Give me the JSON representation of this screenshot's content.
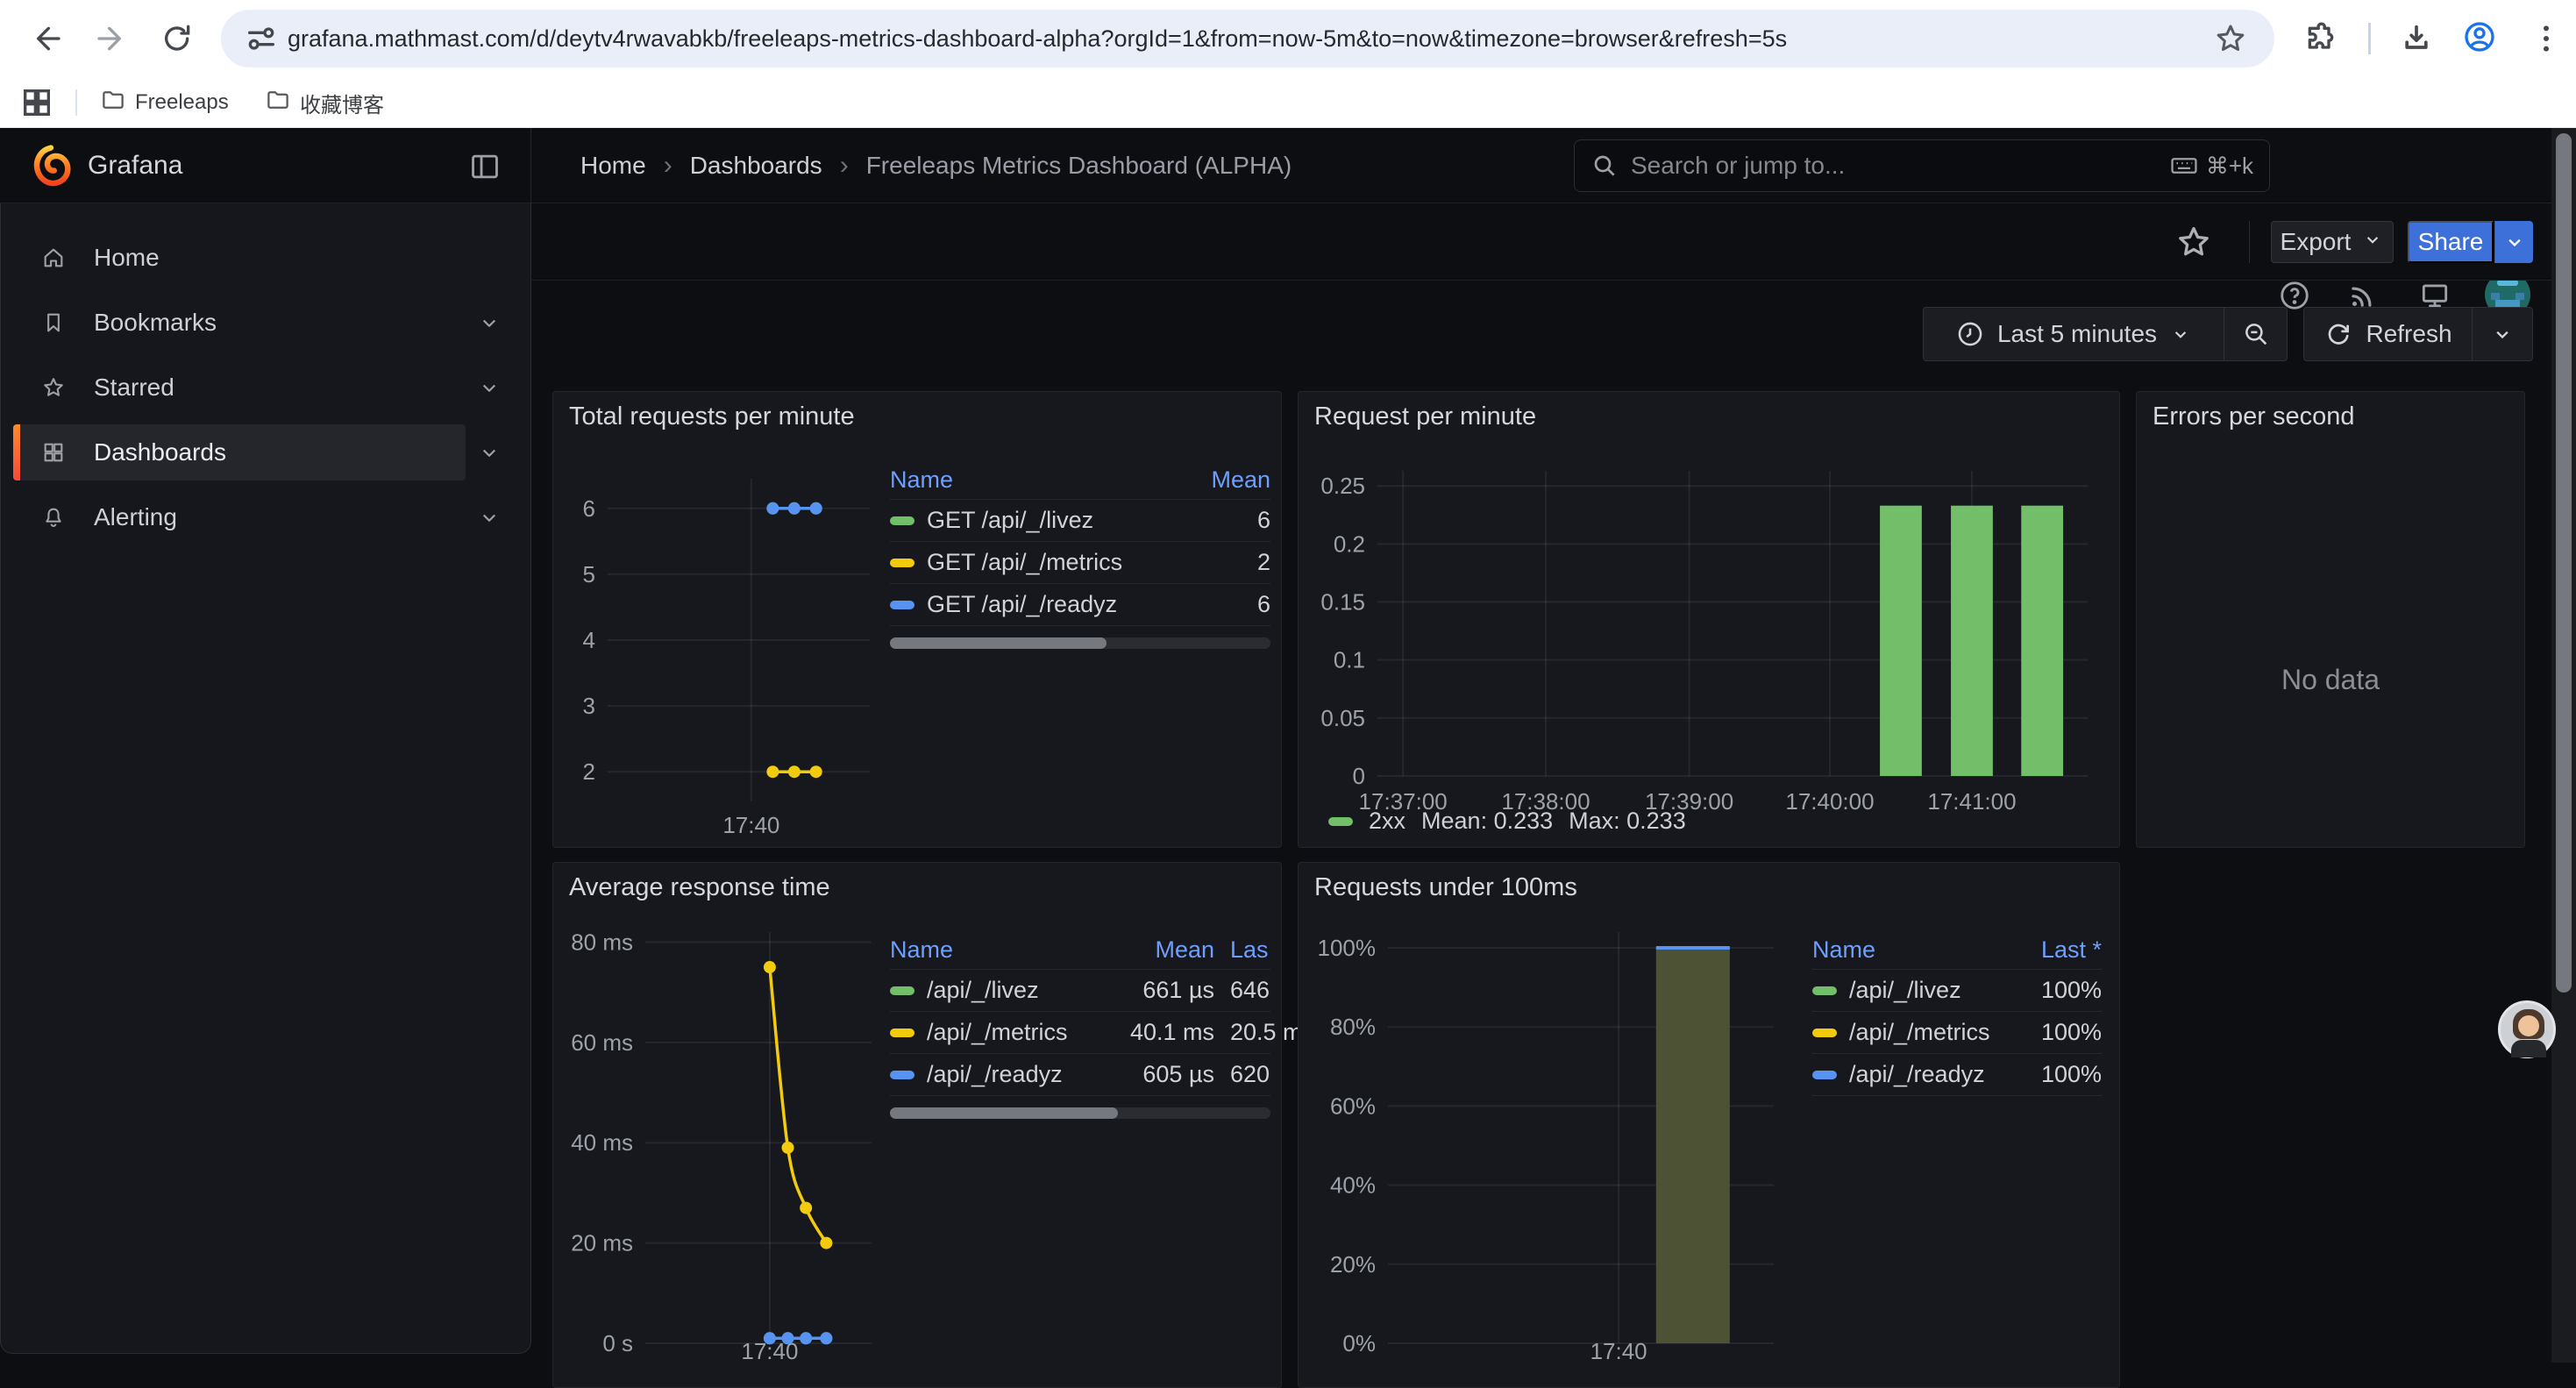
{
  "browser": {
    "url": "grafana.mathmast.com/d/deytv4rwavabkb/freeleaps-metrics-dashboard-alpha?orgId=1&from=now-5m&to=now&timezone=browser&refresh=5s",
    "bookmarks": [
      {
        "label": "Freeleaps"
      },
      {
        "label": "收藏博客"
      }
    ]
  },
  "topnav": {
    "brand": "Grafana",
    "breadcrumbs": [
      "Home",
      "Dashboards",
      "Freeleaps Metrics Dashboard (ALPHA)"
    ],
    "search_placeholder": "Search or jump to...",
    "search_shortcut": "⌘+k"
  },
  "sidebar": {
    "items": [
      {
        "label": "Home",
        "icon": "home-icon",
        "expandable": false,
        "active": false
      },
      {
        "label": "Bookmarks",
        "icon": "bookmark-icon",
        "expandable": true,
        "active": false
      },
      {
        "label": "Starred",
        "icon": "star-icon",
        "expandable": true,
        "active": false
      },
      {
        "label": "Dashboards",
        "icon": "dashboards-icon",
        "expandable": true,
        "active": true
      },
      {
        "label": "Alerting",
        "icon": "bell-icon",
        "expandable": true,
        "active": false
      }
    ]
  },
  "actions": {
    "export_label": "Export",
    "share_label": "Share"
  },
  "timebar": {
    "range_label": "Last 5 minutes",
    "refresh_label": "Refresh"
  },
  "panels": [
    {
      "title": "Total requests per minute"
    },
    {
      "title": "Request per minute"
    },
    {
      "title": "Errors per second",
      "no_data": "No data"
    },
    {
      "title": "Average response time"
    },
    {
      "title": "Requests under 100ms"
    }
  ],
  "legends": {
    "p1": {
      "headers": [
        "Name",
        "Mean"
      ],
      "rows": [
        {
          "color": "#73BF69",
          "name": "GET /api/_/livez",
          "cells": [
            "6"
          ]
        },
        {
          "color": "#F2CC0C",
          "name": "GET /api/_/metrics",
          "cells": [
            "2"
          ]
        },
        {
          "color": "#5794F2",
          "name": "GET /api/_/readyz",
          "cells": [
            "6"
          ]
        }
      ],
      "scrollbar": 0.57
    },
    "p2": {
      "swatch": "#73BF69",
      "label": "2xx",
      "stats": [
        "Mean: 0.233",
        "Max: 0.233"
      ]
    },
    "p4": {
      "headers": [
        "Name",
        "Mean",
        "Las"
      ],
      "rows": [
        {
          "color": "#73BF69",
          "name": "/api/_/livez",
          "cells": [
            "661 µs",
            "646"
          ]
        },
        {
          "color": "#F2CC0C",
          "name": "/api/_/metrics",
          "cells": [
            "40.1 ms",
            "20.5 m"
          ]
        },
        {
          "color": "#5794F2",
          "name": "/api/_/readyz",
          "cells": [
            "605 µs",
            "620"
          ]
        }
      ],
      "scrollbar": 0.6
    },
    "p5": {
      "headers": [
        "Name",
        "Last *"
      ],
      "rows": [
        {
          "color": "#73BF69",
          "name": "/api/_/livez",
          "cells": [
            "100%"
          ]
        },
        {
          "color": "#F2CC0C",
          "name": "/api/_/metrics",
          "cells": [
            "100%"
          ]
        },
        {
          "color": "#5794F2",
          "name": "/api/_/readyz",
          "cells": [
            "100%"
          ]
        }
      ]
    }
  },
  "chart_data": [
    {
      "type": "line",
      "title": "Total requests per minute",
      "ylim": [
        1.55,
        6.45
      ],
      "yticks": [
        {
          "v": 6,
          "label": "6"
        },
        {
          "v": 5,
          "label": "5"
        },
        {
          "v": 4,
          "label": "4"
        },
        {
          "v": 3,
          "label": "3"
        },
        {
          "v": 2,
          "label": "2"
        }
      ],
      "xticks": [
        {
          "pos": 0.548,
          "label": "17:40"
        }
      ],
      "vgrid": [
        0.548
      ],
      "series": [
        {
          "name": "GET /api/_/livez",
          "color": "#73BF69",
          "x": [
            0.63,
            0.712,
            0.795
          ],
          "values": [
            6,
            6,
            6
          ],
          "dots": true
        },
        {
          "name": "GET /api/_/metrics",
          "color": "#F2CC0C",
          "x": [
            0.63,
            0.712,
            0.795
          ],
          "values": [
            2,
            2,
            2
          ],
          "dots": true
        },
        {
          "name": "GET /api/_/readyz",
          "color": "#5794F2",
          "x": [
            0.63,
            0.712,
            0.795
          ],
          "values": [
            6,
            6,
            6
          ],
          "dots": true
        }
      ]
    },
    {
      "type": "bar",
      "title": "Request per minute",
      "ylim": [
        0,
        0.263
      ],
      "yticks": [
        {
          "v": 0.25,
          "label": "0.25"
        },
        {
          "v": 0.2,
          "label": "0.2"
        },
        {
          "v": 0.15,
          "label": "0.15"
        },
        {
          "v": 0.1,
          "label": "0.1"
        },
        {
          "v": 0.05,
          "label": "0.05"
        },
        {
          "v": 0,
          "label": "0"
        }
      ],
      "xticks": [
        {
          "pos": 0.036,
          "label": "17:37:00"
        },
        {
          "pos": 0.237,
          "label": "17:38:00"
        },
        {
          "pos": 0.439,
          "label": "17:39:00"
        },
        {
          "pos": 0.637,
          "label": "17:40:00"
        },
        {
          "pos": 0.837,
          "label": "17:41:00"
        }
      ],
      "vgrid": [
        0.036,
        0.237,
        0.439,
        0.637,
        0.837
      ],
      "bars": {
        "name": "2xx",
        "color": "#73BF69",
        "x": [
          0.737,
          0.837,
          0.936
        ],
        "width": 0.059,
        "values": [
          0.233,
          0.233,
          0.233
        ]
      },
      "legend": {
        "name": "2xx",
        "mean": 0.233,
        "max": 0.233
      }
    },
    {
      "type": "line",
      "title": "Average response time",
      "ylim": [
        0,
        82
      ],
      "yticks": [
        {
          "v": 80,
          "label": "80 ms"
        },
        {
          "v": 60,
          "label": "60 ms"
        },
        {
          "v": 40,
          "label": "40 ms"
        },
        {
          "v": 20,
          "label": "20 ms"
        },
        {
          "v": 0,
          "label": "0 s"
        }
      ],
      "xticks": [
        {
          "pos": 0.55,
          "label": "17:40"
        }
      ],
      "vgrid": [
        0.55
      ],
      "series": [
        {
          "name": "/api/_/livez",
          "color": "#73BF69",
          "x": [
            0.55,
            0.63,
            0.71,
            0.8
          ],
          "values": [
            1,
            1,
            1,
            1
          ],
          "dots": true
        },
        {
          "name": "/api/_/readyz",
          "color": "#5794F2",
          "x": [
            0.55,
            0.63,
            0.71,
            0.8
          ],
          "values": [
            1,
            1,
            1,
            1
          ],
          "dots": true
        },
        {
          "name": "/api/_/metrics",
          "color": "#F2CC0C",
          "x": [
            0.55,
            0.63,
            0.71,
            0.8
          ],
          "values": [
            75,
            39,
            27,
            20
          ],
          "dots": true,
          "smooth": true
        }
      ]
    },
    {
      "type": "area",
      "title": "Requests under 100ms",
      "ylim": [
        0,
        104
      ],
      "yticks": [
        {
          "v": 100,
          "label": "100%"
        },
        {
          "v": 80,
          "label": "80%"
        },
        {
          "v": 60,
          "label": "60%"
        },
        {
          "v": 40,
          "label": "40%"
        },
        {
          "v": 20,
          "label": "20%"
        },
        {
          "v": 0,
          "label": "0%"
        }
      ],
      "xticks": [
        {
          "pos": 0.598,
          "label": "17:40"
        }
      ],
      "vgrid": [
        0.598
      ],
      "area": {
        "x0": 0.695,
        "x1": 0.886,
        "v": 100,
        "fill": "#4c5233",
        "line": "#5794F2"
      },
      "series": [
        {
          "name": "/api/_/livez",
          "value": 100
        },
        {
          "name": "/api/_/metrics",
          "value": 100
        },
        {
          "name": "/api/_/readyz",
          "value": 100
        }
      ]
    }
  ]
}
